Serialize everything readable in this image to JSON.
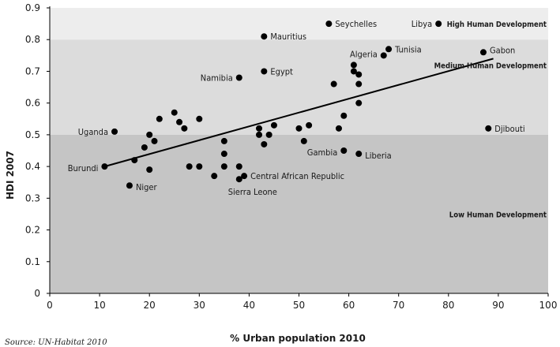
{
  "chart_data": {
    "type": "scatter",
    "title": "",
    "xlabel": "% Urban population 2010",
    "ylabel": "HDI 2007",
    "source": "Source: UN-Habitat 2010",
    "xlim": [
      0,
      100
    ],
    "ylim": [
      0,
      0.9
    ],
    "xticks": [
      "0",
      "10",
      "20",
      "30",
      "40",
      "50",
      "60",
      "70",
      "80",
      "90",
      "100"
    ],
    "yticks": [
      "0",
      "0.1",
      "0.2",
      "0.3",
      "0.4",
      "0.5",
      "0.6",
      "0.7",
      "0.8",
      "0.9"
    ],
    "grid": false,
    "bands": [
      {
        "name": "High Human Development",
        "from": 0.8,
        "to": 0.9,
        "color": "#ededed"
      },
      {
        "name": "Medium Human Development",
        "from": 0.5,
        "to": 0.8,
        "color": "#dcdcdc"
      },
      {
        "name": "Low Human Development",
        "from": 0,
        "to": 0.5,
        "color": "#c5c5c5"
      }
    ],
    "trendline": {
      "x": [
        11,
        89
      ],
      "y": [
        0.4,
        0.74
      ]
    },
    "points": [
      {
        "x": 56,
        "y": 0.85,
        "label": "Seychelles"
      },
      {
        "x": 78,
        "y": 0.85,
        "label": "Libya"
      },
      {
        "x": 43,
        "y": 0.81,
        "label": "Mauritius"
      },
      {
        "x": 87,
        "y": 0.76,
        "label": "Gabon"
      },
      {
        "x": 68,
        "y": 0.77,
        "label": "Tunisia"
      },
      {
        "x": 67,
        "y": 0.75,
        "label": "Algeria"
      },
      {
        "x": 43,
        "y": 0.7,
        "label": "Egypt"
      },
      {
        "x": 38,
        "y": 0.68,
        "label": "Namibia"
      },
      {
        "x": 13,
        "y": 0.51,
        "label": "Uganda"
      },
      {
        "x": 88,
        "y": 0.52,
        "label": "Djibouti"
      },
      {
        "x": 59,
        "y": 0.45,
        "label": "Gambia"
      },
      {
        "x": 62,
        "y": 0.44,
        "label": "Liberia"
      },
      {
        "x": 11,
        "y": 0.4,
        "label": "Burundi"
      },
      {
        "x": 16,
        "y": 0.34,
        "label": "Niger"
      },
      {
        "x": 39,
        "y": 0.37,
        "label": "Central African Republic"
      },
      {
        "x": 38,
        "y": 0.36,
        "label": "Sierra Leone"
      },
      {
        "x": 61,
        "y": 0.72,
        "label": ""
      },
      {
        "x": 61,
        "y": 0.7,
        "label": ""
      },
      {
        "x": 62,
        "y": 0.69,
        "label": ""
      },
      {
        "x": 62,
        "y": 0.66,
        "label": ""
      },
      {
        "x": 57,
        "y": 0.66,
        "label": ""
      },
      {
        "x": 62,
        "y": 0.6,
        "label": ""
      },
      {
        "x": 59,
        "y": 0.56,
        "label": ""
      },
      {
        "x": 58,
        "y": 0.52,
        "label": ""
      },
      {
        "x": 52,
        "y": 0.53,
        "label": ""
      },
      {
        "x": 50,
        "y": 0.52,
        "label": ""
      },
      {
        "x": 51,
        "y": 0.48,
        "label": ""
      },
      {
        "x": 45,
        "y": 0.53,
        "label": ""
      },
      {
        "x": 42,
        "y": 0.52,
        "label": ""
      },
      {
        "x": 42,
        "y": 0.5,
        "label": ""
      },
      {
        "x": 44,
        "y": 0.5,
        "label": ""
      },
      {
        "x": 43,
        "y": 0.47,
        "label": ""
      },
      {
        "x": 25,
        "y": 0.57,
        "label": ""
      },
      {
        "x": 30,
        "y": 0.55,
        "label": ""
      },
      {
        "x": 22,
        "y": 0.55,
        "label": ""
      },
      {
        "x": 26,
        "y": 0.54,
        "label": ""
      },
      {
        "x": 27,
        "y": 0.52,
        "label": ""
      },
      {
        "x": 20,
        "y": 0.5,
        "label": ""
      },
      {
        "x": 21,
        "y": 0.48,
        "label": ""
      },
      {
        "x": 19,
        "y": 0.46,
        "label": ""
      },
      {
        "x": 17,
        "y": 0.42,
        "label": ""
      },
      {
        "x": 35,
        "y": 0.48,
        "label": ""
      },
      {
        "x": 35,
        "y": 0.44,
        "label": ""
      },
      {
        "x": 35,
        "y": 0.4,
        "label": ""
      },
      {
        "x": 28,
        "y": 0.4,
        "label": ""
      },
      {
        "x": 30,
        "y": 0.4,
        "label": ""
      },
      {
        "x": 20,
        "y": 0.39,
        "label": ""
      },
      {
        "x": 38,
        "y": 0.4,
        "label": ""
      },
      {
        "x": 33,
        "y": 0.37,
        "label": ""
      }
    ]
  }
}
